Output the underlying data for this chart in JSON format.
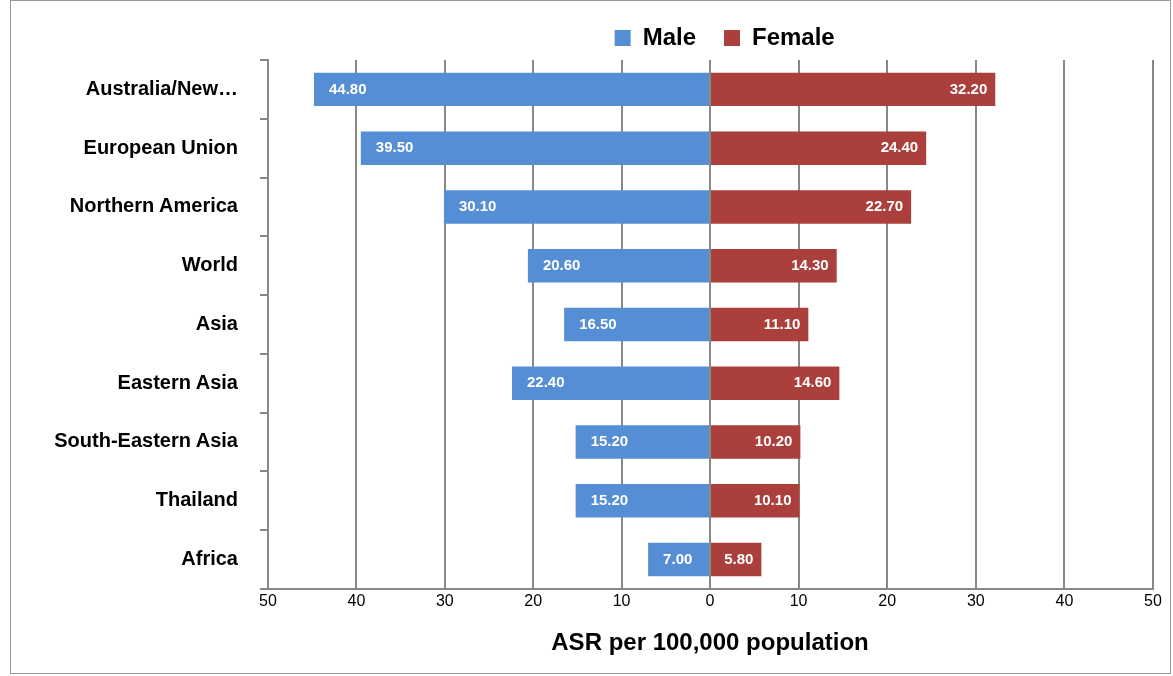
{
  "chart_data": [
    {
      "type": "bar",
      "orientation": "horizontal",
      "xlabel": "ASR per 100,000 population",
      "categories": [
        "Australia/New…",
        "European Union",
        "Northern America",
        "World",
        "Asia",
        "Eastern Asia",
        "South-Eastern Asia",
        "Thailand",
        "Africa"
      ],
      "series": [
        {
          "name": "Male",
          "color": "#558ed5",
          "values": [
            44.8,
            39.5,
            30.1,
            20.6,
            16.5,
            22.4,
            15.2,
            15.2,
            7.0
          ],
          "value_labels": [
            "44.80",
            "39.50",
            "30.10",
            "20.60",
            "16.50",
            "22.40",
            "15.20",
            "15.20",
            "7.00"
          ]
        }
      ],
      "xlim": [
        50,
        0
      ],
      "xticks": [
        50,
        40,
        30,
        20,
        10,
        0
      ],
      "grid": "x",
      "legend": "top"
    },
    {
      "type": "bar",
      "orientation": "horizontal",
      "categories": [
        null,
        null,
        null,
        null,
        null,
        null,
        null,
        null,
        null
      ],
      "series": [
        {
          "name": "Female",
          "color": "#aa3f3c",
          "values": [
            32.2,
            24.4,
            22.7,
            14.3,
            11.1,
            14.6,
            10.2,
            10.1,
            5.8
          ],
          "value_labels": [
            "32.20",
            "24.40",
            "22.70",
            "14.30",
            "11.10",
            "14.60",
            "10.20",
            "10.10",
            "5.80"
          ]
        }
      ],
      "xlim": [
        0,
        50
      ],
      "xticks": [
        {
          "value": 0,
          "label": null
        },
        10,
        20,
        30,
        40,
        50
      ],
      "grid": "x",
      "legend": "top",
      "tick_labels": "x"
    }
  ]
}
